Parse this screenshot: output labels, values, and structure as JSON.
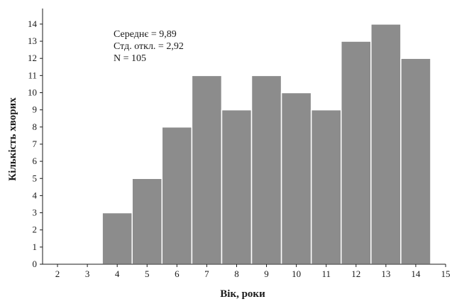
{
  "chart_data": {
    "type": "bar",
    "subtype": "histogram",
    "title": "",
    "xlabel": "Вік, роки",
    "ylabel": "Кількість хворих",
    "bins": [
      {
        "x_start": 3.5,
        "x_end": 4.5,
        "count": 3
      },
      {
        "x_start": 4.5,
        "x_end": 5.5,
        "count": 5
      },
      {
        "x_start": 5.5,
        "x_end": 6.5,
        "count": 8
      },
      {
        "x_start": 6.5,
        "x_end": 7.5,
        "count": 11
      },
      {
        "x_start": 7.5,
        "x_end": 8.5,
        "count": 9
      },
      {
        "x_start": 8.5,
        "x_end": 9.5,
        "count": 11
      },
      {
        "x_start": 9.5,
        "x_end": 10.5,
        "count": 10
      },
      {
        "x_start": 10.5,
        "x_end": 11.5,
        "count": 9
      },
      {
        "x_start": 11.5,
        "x_end": 12.5,
        "count": 13
      },
      {
        "x_start": 12.5,
        "x_end": 13.5,
        "count": 14
      },
      {
        "x_start": 13.5,
        "x_end": 14.5,
        "count": 12
      }
    ],
    "xlim": [
      1.5,
      15
    ],
    "ylim": [
      0,
      14.7
    ],
    "x_ticks": [
      "2",
      "3",
      "4",
      "5",
      "6",
      "7",
      "8",
      "9",
      "10",
      "11",
      "12",
      "13",
      "14",
      "15"
    ],
    "y_ticks": [
      "0",
      "1",
      "2",
      "3",
      "4",
      "5",
      "6",
      "7",
      "8",
      "9",
      "10",
      "11",
      "12",
      "13",
      "14"
    ],
    "annotations": [
      "Середнє = 9,89",
      "Стд. откл. = 2,92",
      "N = 105"
    ],
    "bar_color": "#8c8c8c",
    "bar_edge_color": "#ffffff",
    "grid": false,
    "legend": "none"
  }
}
